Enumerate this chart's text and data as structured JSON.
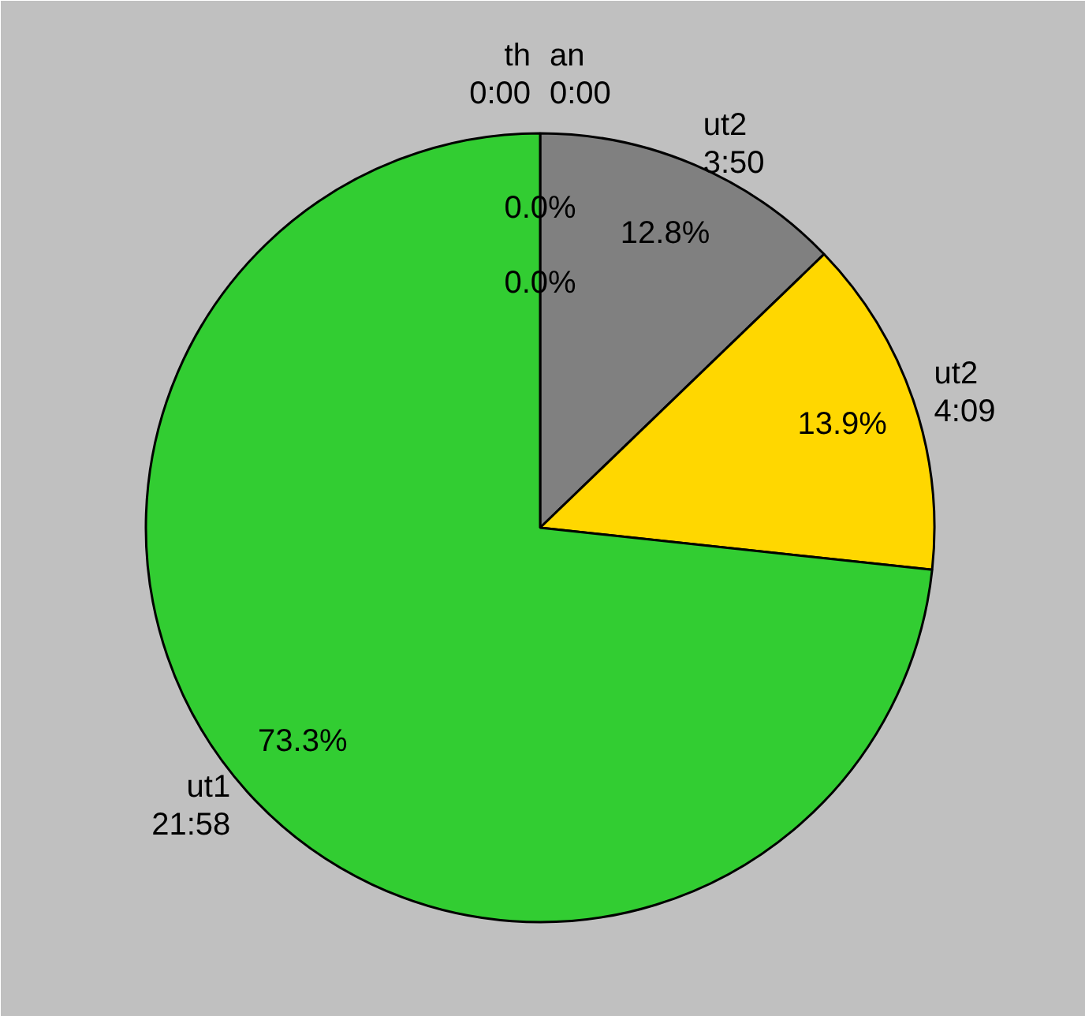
{
  "chart_data": {
    "type": "pie",
    "categories": [
      "th\n0:00",
      "an\n0:00",
      "ut2\n3:50",
      "ut2\n4:09",
      "ut1\n21:58"
    ],
    "values": [
      0,
      0,
      12.8,
      13.9,
      73.3
    ],
    "colors": [
      "#ff0000",
      "#0000ff",
      "#808080",
      "#ffd700",
      "#32cd32"
    ],
    "value_labels": [
      "0.0%",
      "0.0%",
      "12.8%",
      "13.9%",
      "73.3%"
    ]
  }
}
